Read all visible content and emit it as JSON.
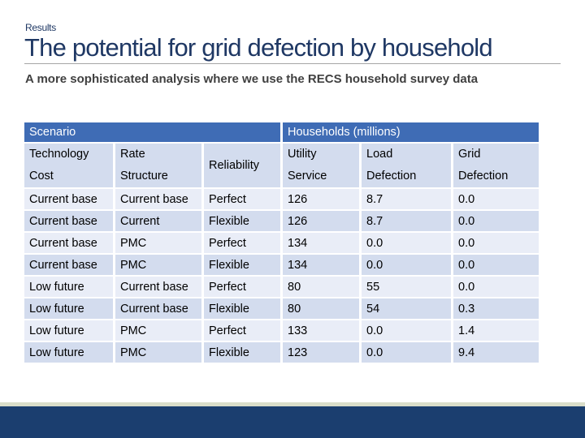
{
  "header": {
    "section": "Results",
    "title": "The potential for grid defection by household",
    "subtitle": "A more sophisticated analysis where we use the RECS household survey data"
  },
  "table": {
    "group_headers": [
      "Scenario",
      "Households (millions)"
    ],
    "columns": [
      [
        "Technology",
        "Cost"
      ],
      [
        "Rate",
        "Structure"
      ],
      [
        "Reliability"
      ],
      [
        "Utility",
        "Service"
      ],
      [
        "Load",
        "Defection"
      ],
      [
        "Grid",
        "Defection"
      ]
    ],
    "rows": [
      [
        "Current base",
        "Current base",
        "Perfect",
        "126",
        "8.7",
        "0.0"
      ],
      [
        "Current base",
        "Current",
        "Flexible",
        "126",
        "8.7",
        "0.0"
      ],
      [
        "Current base",
        "PMC",
        "Perfect",
        "134",
        "0.0",
        "0.0"
      ],
      [
        "Current base",
        "PMC",
        "Flexible",
        "134",
        "0.0",
        "0.0"
      ],
      [
        "Low future",
        "Current base",
        "Perfect",
        "80",
        "55",
        "0.0"
      ],
      [
        "Low future",
        "Current base",
        "Flexible",
        "80",
        "54",
        "0.3"
      ],
      [
        "Low future",
        "PMC",
        "Perfect",
        "133",
        "0.0",
        "1.4"
      ],
      [
        "Low future",
        "PMC",
        "Flexible",
        "123",
        "0.0",
        "9.4"
      ]
    ]
  }
}
